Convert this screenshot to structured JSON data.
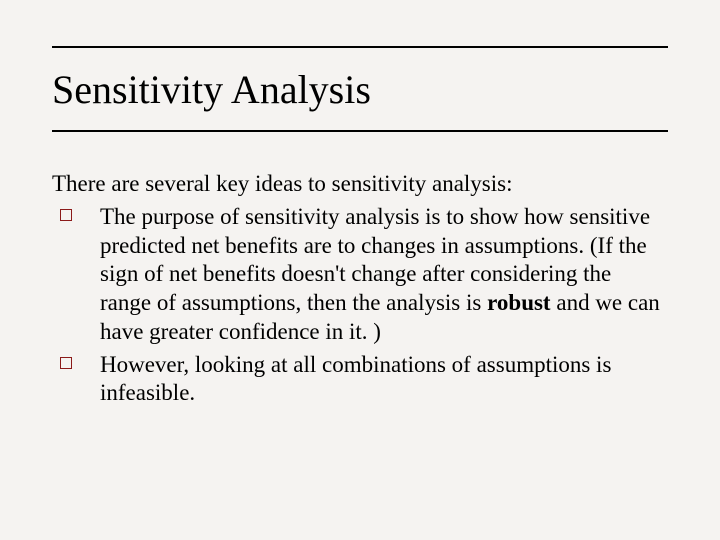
{
  "slide": {
    "title": "Sensitivity Analysis",
    "intro": "There are several key ideas to sensitivity analysis:",
    "bullet_marker_color": "#8b1a1a",
    "bullets": [
      {
        "text_before": "The purpose of sensitivity analysis is to show how sensitive predicted net benefits are to changes in assumptions. (If the sign of net benefits doesn't change after considering the range of assumptions, then the analysis is ",
        "bold": "robust",
        "text_after": " and we can have greater confidence in it. )"
      },
      {
        "text_before": "However, looking at all combinations of assumptions is infeasible.",
        "bold": "",
        "text_after": ""
      }
    ]
  },
  "style": {
    "background_color": "#f5f3f1",
    "title_fontsize": 40,
    "body_fontsize": 23,
    "rule_color": "#000000"
  }
}
